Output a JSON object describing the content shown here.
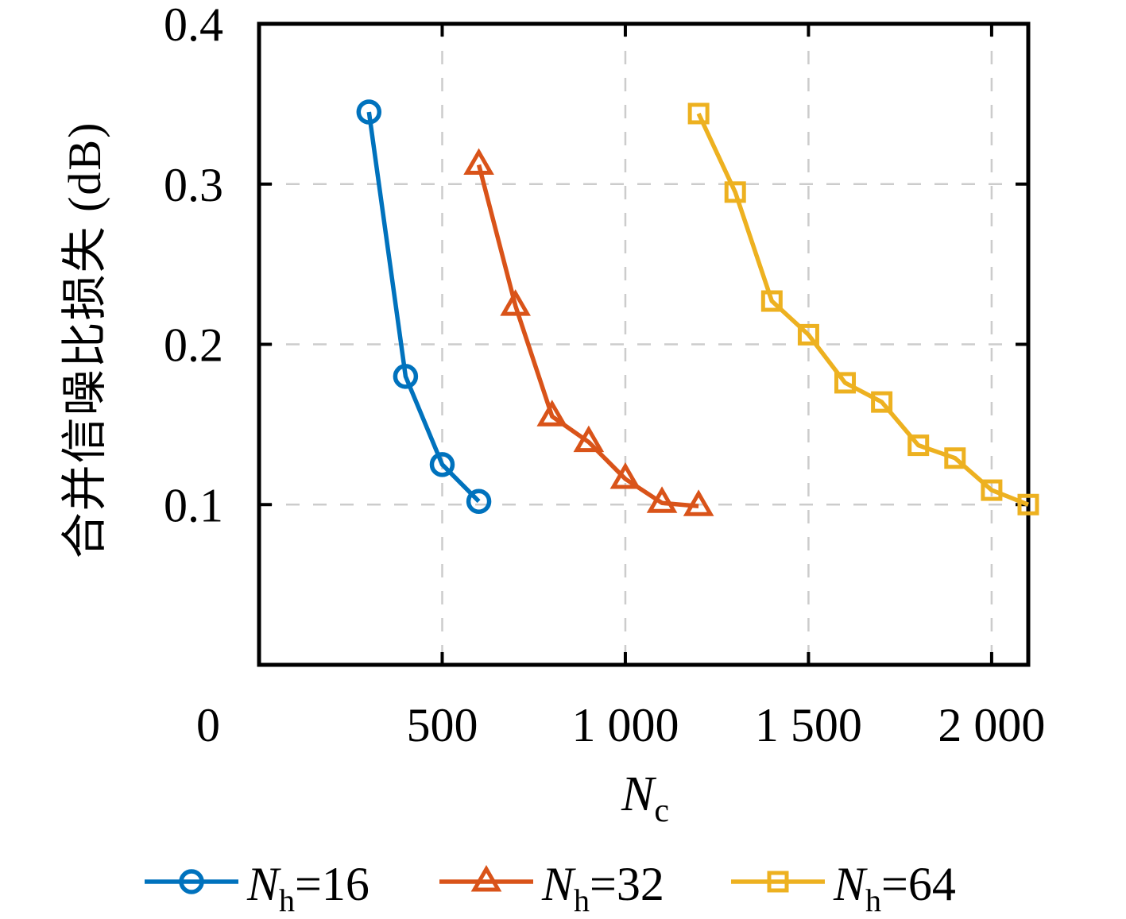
{
  "figure": {
    "background": "#ffffff",
    "axis_color": "#000000",
    "grid_color": "#cccccc"
  },
  "chart_data": {
    "type": "line",
    "title": "",
    "xlabel_main": "N",
    "xlabel_sub": "c",
    "ylabel": "合并信噪比损失 (dB)",
    "xlim": [
      0,
      2100
    ],
    "ylim": [
      0,
      0.4
    ],
    "grid": "dashed",
    "legend_position": "bottom",
    "x_ticks": [
      {
        "value": 0,
        "label": "0"
      },
      {
        "value": 500,
        "label": "500"
      },
      {
        "value": 1000,
        "label": "1 000"
      },
      {
        "value": 1500,
        "label": "1 500"
      },
      {
        "value": 2000,
        "label": "2 000"
      }
    ],
    "y_ticks": [
      {
        "value": 0.1,
        "label": "0.1"
      },
      {
        "value": 0.2,
        "label": "0.2"
      },
      {
        "value": 0.3,
        "label": "0.3"
      },
      {
        "value": 0.4,
        "label": "0.4"
      }
    ],
    "x_gridlines": [
      500,
      1000,
      1500,
      2000
    ],
    "y_gridlines": [
      0.1,
      0.2,
      0.3
    ],
    "series": [
      {
        "name": "Nh=16",
        "label_main": "N",
        "label_sub": "h",
        "label_rest": "=16",
        "color": "#0072BD",
        "marker": "circle",
        "points": [
          [
            300,
            0.345
          ],
          [
            400,
            0.18
          ],
          [
            500,
            0.125
          ],
          [
            600,
            0.102
          ]
        ]
      },
      {
        "name": "Nh=32",
        "label_main": "N",
        "label_sub": "h",
        "label_rest": "=32",
        "color": "#D95319",
        "marker": "triangle",
        "points": [
          [
            600,
            0.312
          ],
          [
            700,
            0.224
          ],
          [
            800,
            0.155
          ],
          [
            900,
            0.139
          ],
          [
            1000,
            0.116
          ],
          [
            1100,
            0.101
          ],
          [
            1200,
            0.099
          ]
        ]
      },
      {
        "name": "Nh=64",
        "label_main": "N",
        "label_sub": "h",
        "label_rest": "=64",
        "color": "#EDB120",
        "marker": "square",
        "points": [
          [
            1200,
            0.344
          ],
          [
            1300,
            0.295
          ],
          [
            1400,
            0.227
          ],
          [
            1500,
            0.206
          ],
          [
            1600,
            0.176
          ],
          [
            1700,
            0.164
          ],
          [
            1800,
            0.137
          ],
          [
            1900,
            0.129
          ],
          [
            2000,
            0.109
          ],
          [
            2100,
            0.1
          ]
        ]
      }
    ]
  }
}
